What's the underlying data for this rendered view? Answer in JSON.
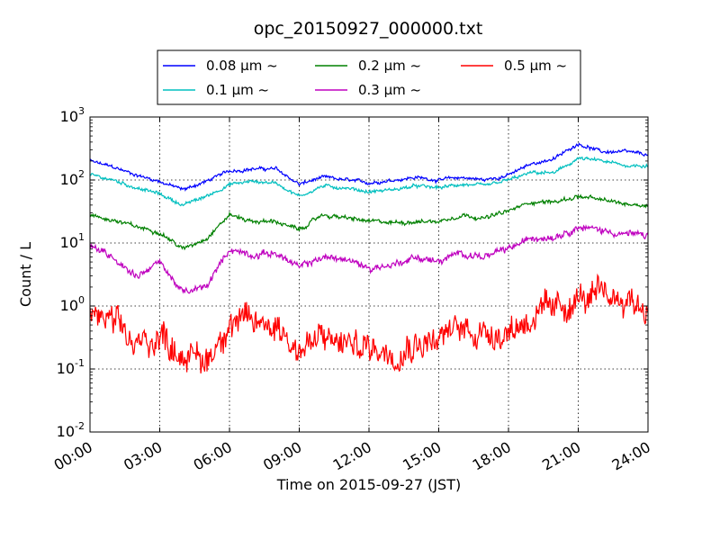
{
  "chart_data": {
    "type": "line",
    "title": "opc_20150927_000000.txt",
    "xlabel": "Time on 2015-09-27 (JST)",
    "ylabel": "Count / L",
    "x_unit": "hours",
    "xlim": [
      0,
      24
    ],
    "ylim": [
      0.01,
      1000
    ],
    "yscale": "log",
    "grid": true,
    "legend_position": "top-center",
    "x_tick_labels": [
      "00:00",
      "03:00",
      "06:00",
      "09:00",
      "12:00",
      "15:00",
      "18:00",
      "21:00",
      "24:00"
    ],
    "y_tick_labels": [
      {
        "base": "10",
        "exp": "-2"
      },
      {
        "base": "10",
        "exp": "-1"
      },
      {
        "base": "10",
        "exp": "0"
      },
      {
        "base": "10",
        "exp": "1"
      },
      {
        "base": "10",
        "exp": "2"
      },
      {
        "base": "10",
        "exp": "3"
      }
    ],
    "x": [
      0,
      1,
      2,
      3,
      4,
      5,
      6,
      7,
      8,
      9,
      10,
      11,
      12,
      13,
      14,
      15,
      16,
      17,
      18,
      19,
      20,
      21,
      22,
      23,
      24
    ],
    "series": [
      {
        "name": "0.08 μm ~",
        "color": "#0000ff",
        "noise": 0.025,
        "values": [
          200,
          160,
          120,
          95,
          70,
          95,
          140,
          150,
          150,
          85,
          110,
          100,
          90,
          100,
          110,
          100,
          110,
          100,
          120,
          180,
          220,
          380,
          280,
          280,
          250
        ]
      },
      {
        "name": "0.1 μm ~",
        "color": "#00bfbf",
        "noise": 0.025,
        "values": [
          120,
          100,
          75,
          60,
          40,
          55,
          85,
          95,
          90,
          55,
          80,
          75,
          65,
          70,
          80,
          75,
          85,
          80,
          100,
          130,
          130,
          220,
          200,
          170,
          170
        ]
      },
      {
        "name": "0.2 μm ~",
        "color": "#008000",
        "noise": 0.03,
        "values": [
          27,
          23,
          18,
          15,
          8,
          12,
          28,
          22,
          22,
          16,
          28,
          25,
          22,
          21,
          22,
          22,
          28,
          25,
          32,
          45,
          45,
          55,
          48,
          42,
          40
        ]
      },
      {
        "name": "0.3 μm ~",
        "color": "#bf00bf",
        "noise": 0.05,
        "values": [
          9,
          6,
          3,
          5,
          1.6,
          2,
          8,
          6.5,
          7,
          4,
          6,
          5.5,
          4,
          4.5,
          6,
          5,
          7,
          6,
          8,
          12,
          13,
          18,
          16,
          14,
          13
        ]
      },
      {
        "name": "0.5 μm ~",
        "color": "#ff0000",
        "noise": 0.22,
        "values": [
          0.8,
          0.5,
          0.22,
          0.35,
          0.18,
          0.13,
          0.6,
          0.5,
          0.55,
          0.2,
          0.3,
          0.25,
          0.22,
          0.2,
          0.28,
          0.3,
          0.45,
          0.4,
          0.4,
          0.7,
          0.8,
          1.3,
          1.3,
          1.4,
          0.9
        ]
      }
    ]
  }
}
